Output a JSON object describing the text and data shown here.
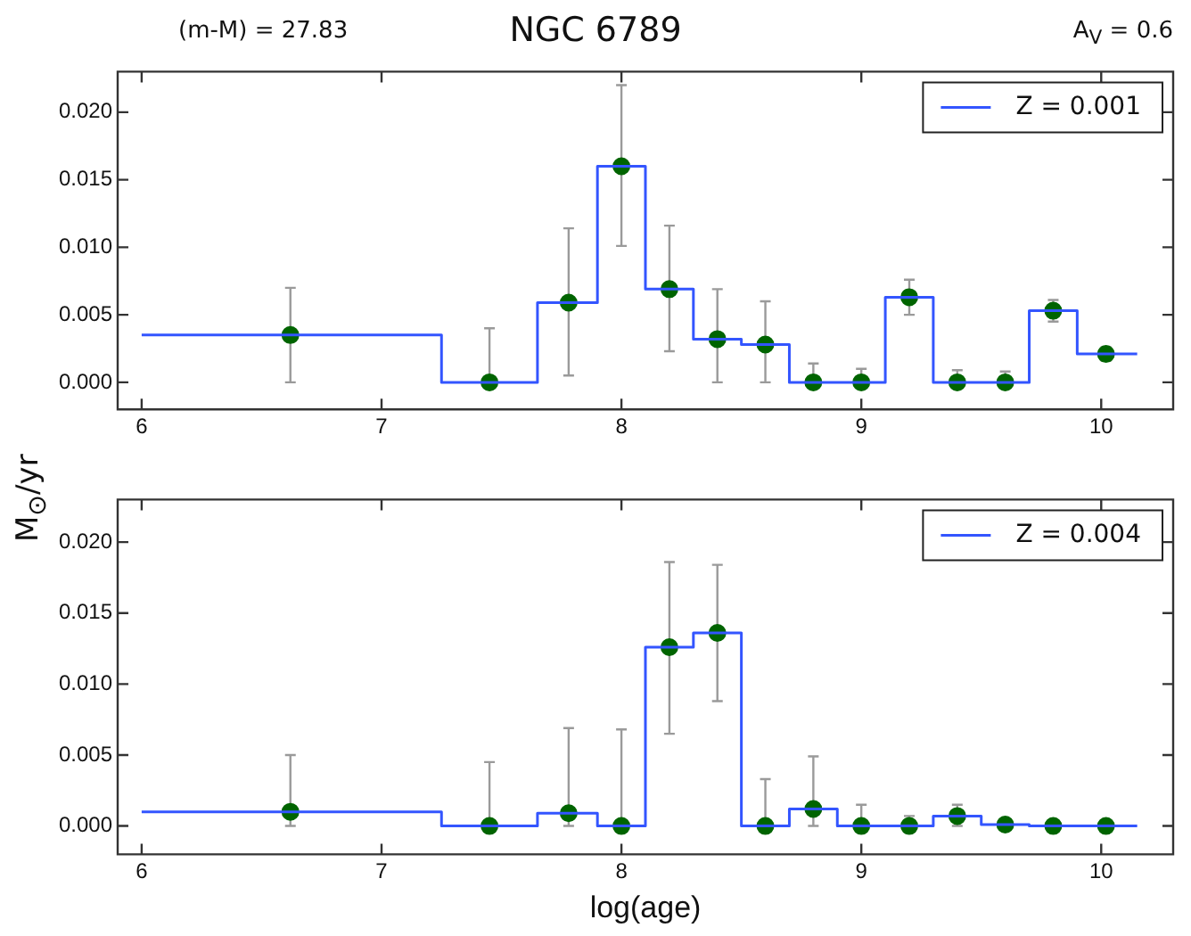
{
  "chart_data": [
    {
      "type": "step",
      "title": "NGC 6789",
      "ylabel": "M$_{⊙}$/yr",
      "annotations": [
        "(m-M) = 27.83",
        "A$_{V}$ = 0.6"
      ],
      "xlim": [
        5.9,
        10.3
      ],
      "xticks": [
        6,
        7,
        8,
        9,
        10
      ],
      "ylim": [
        -0.002,
        0.023
      ],
      "yticks": [
        {
          "value": 0,
          "label": "0.000"
        },
        {
          "value": 0.005,
          "label": "0.005"
        },
        {
          "value": 0.01,
          "label": "0.010"
        },
        {
          "value": 0.015,
          "label": "0.015"
        },
        {
          "value": 0.02,
          "label": "0.020"
        }
      ],
      "grid": false,
      "legend": "top right",
      "series": [
        {
          "type": "step",
          "name": "Z = 0.001",
          "color": "#3355ff",
          "x": [
            6,
            7.25,
            7.65,
            7.9,
            8.1,
            8.3,
            8.5,
            8.7,
            8.9,
            9.1,
            9.3,
            9.5,
            9.7,
            9.9,
            10.15
          ],
          "values": [
            0.0035,
            0,
            0.0059,
            0.016,
            0.0069,
            0.0032,
            0.0028,
            0,
            0,
            0.0063,
            0,
            0,
            0.0053,
            0.0021,
            0.0021
          ]
        },
        {
          "type": "scatter",
          "color": "#006400",
          "marker": "circle",
          "x": [
            6.62,
            7.45,
            7.78,
            8.0,
            8.2,
            8.4,
            8.6,
            8.8,
            9.0,
            9.2,
            9.4,
            9.6,
            9.8,
            10.02
          ],
          "values": [
            0.0035,
            0,
            0.0059,
            0.016,
            0.0069,
            0.0032,
            0.0028,
            0,
            0,
            0.0063,
            0,
            0,
            0.0053,
            0.0021
          ],
          "errors": [
            [
              0,
              0.007
            ],
            [
              0,
              0.004
            ],
            [
              0.0005,
              0.0114
            ],
            [
              0.0101,
              0.022
            ],
            [
              0.0023,
              0.0116
            ],
            [
              0,
              0.0069
            ],
            [
              0,
              0.006
            ],
            [
              0,
              0.0014
            ],
            [
              0,
              0.001
            ],
            [
              0.005,
              0.0076
            ],
            [
              0,
              0.0009
            ],
            [
              0,
              0.0008
            ],
            [
              0.0045,
              0.0061
            ],
            [
              0.0016,
              0.0026
            ]
          ]
        }
      ]
    },
    {
      "type": "step",
      "xlabel": "log(age)",
      "xlim": [
        5.9,
        10.3
      ],
      "xticks": [
        6,
        7,
        8,
        9,
        10
      ],
      "ylim": [
        -0.002,
        0.023
      ],
      "yticks": [
        {
          "value": 0,
          "label": "0.000"
        },
        {
          "value": 0.005,
          "label": "0.005"
        },
        {
          "value": 0.01,
          "label": "0.010"
        },
        {
          "value": 0.015,
          "label": "0.015"
        },
        {
          "value": 0.02,
          "label": "0.020"
        }
      ],
      "grid": false,
      "legend": "top right",
      "series": [
        {
          "type": "step",
          "name": "Z = 0.004",
          "color": "#3355ff",
          "x": [
            6,
            7.25,
            7.65,
            7.9,
            8.1,
            8.3,
            8.5,
            8.7,
            8.9,
            9.1,
            9.3,
            9.5,
            9.7,
            9.9,
            10.15
          ],
          "values": [
            0.001,
            0,
            0.0009,
            0,
            0.0126,
            0.0136,
            0,
            0.0012,
            0,
            0,
            0.0007,
            0.0001,
            0,
            0,
            0
          ]
        },
        {
          "type": "scatter",
          "color": "#006400",
          "marker": "circle",
          "x": [
            6.62,
            7.45,
            7.78,
            8.0,
            8.2,
            8.4,
            8.6,
            8.8,
            9.0,
            9.2,
            9.4,
            9.6,
            9.8,
            10.02
          ],
          "values": [
            0.001,
            0,
            0.0009,
            0,
            0.0126,
            0.0136,
            0,
            0.0012,
            0,
            0,
            0.0007,
            0.0001,
            0,
            0
          ],
          "errors": [
            [
              0,
              0.005
            ],
            [
              0,
              0.0045
            ],
            [
              0,
              0.0069
            ],
            [
              0,
              0.0068
            ],
            [
              0.0065,
              0.0186
            ],
            [
              0.0088,
              0.0184
            ],
            [
              0,
              0.0033
            ],
            [
              0,
              0.0049
            ],
            [
              0,
              0.0015
            ],
            [
              0,
              0.0007
            ],
            [
              0,
              0.0015
            ],
            null,
            null,
            null
          ]
        }
      ]
    }
  ]
}
